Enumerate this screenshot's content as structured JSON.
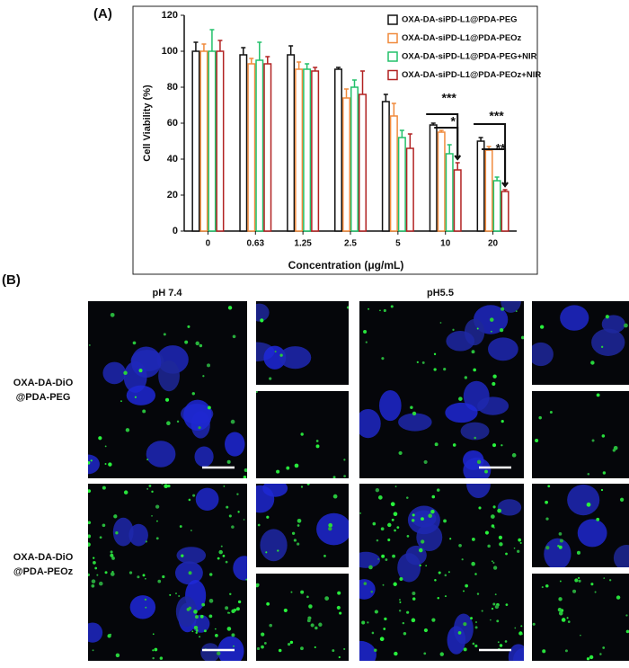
{
  "chart_data": {
    "type": "bar",
    "panel_label": "(A)",
    "ylabel": "Cell Viability (%)",
    "xlabel": "Concentration (μg/mL)",
    "categories": [
      "0",
      "0.63",
      "1.25",
      "2.5",
      "5",
      "10",
      "20"
    ],
    "series": [
      {
        "name": "OXA-DA-siPD-L1@PDA-PEG",
        "color": "#111111",
        "values": [
          100,
          98,
          98,
          90,
          72,
          59,
          50
        ],
        "errors": [
          5,
          4,
          5,
          1,
          4,
          1,
          2
        ]
      },
      {
        "name": "OXA-DA-siPD-L1@PDA-PEOz",
        "color": "#f08a3c",
        "values": [
          100,
          93,
          90,
          74,
          64,
          55,
          45
        ],
        "errors": [
          4,
          3,
          4,
          5,
          7,
          1,
          2
        ]
      },
      {
        "name": "OXA-DA-siPD-L1@PDA-PEG+NIR",
        "color": "#22c06a",
        "values": [
          100,
          95,
          90,
          80,
          52,
          43,
          28
        ],
        "errors": [
          12,
          10,
          3,
          4,
          4,
          5,
          2
        ]
      },
      {
        "name": "OXA-DA-siPD-L1@PDA-PEOz+NIR",
        "color": "#b22222",
        "values": [
          100,
          93,
          89,
          76,
          46,
          34,
          22
        ],
        "errors": [
          6,
          4,
          2,
          13,
          8,
          4,
          1
        ]
      }
    ],
    "annotations": [
      "***",
      "*",
      "***",
      "**"
    ],
    "ylim": [
      0,
      120
    ],
    "yticks": [
      0,
      20,
      40,
      60,
      80,
      100,
      120
    ]
  },
  "figure_b": {
    "panel_label": "(B)",
    "columns": [
      "pH 7.4",
      "pH5.5"
    ],
    "rows": [
      [
        "OXA-DA-DiO",
        "@PDA-PEG"
      ],
      [
        "OXA-DA-DiO",
        "@PDA-PEOz"
      ]
    ]
  }
}
